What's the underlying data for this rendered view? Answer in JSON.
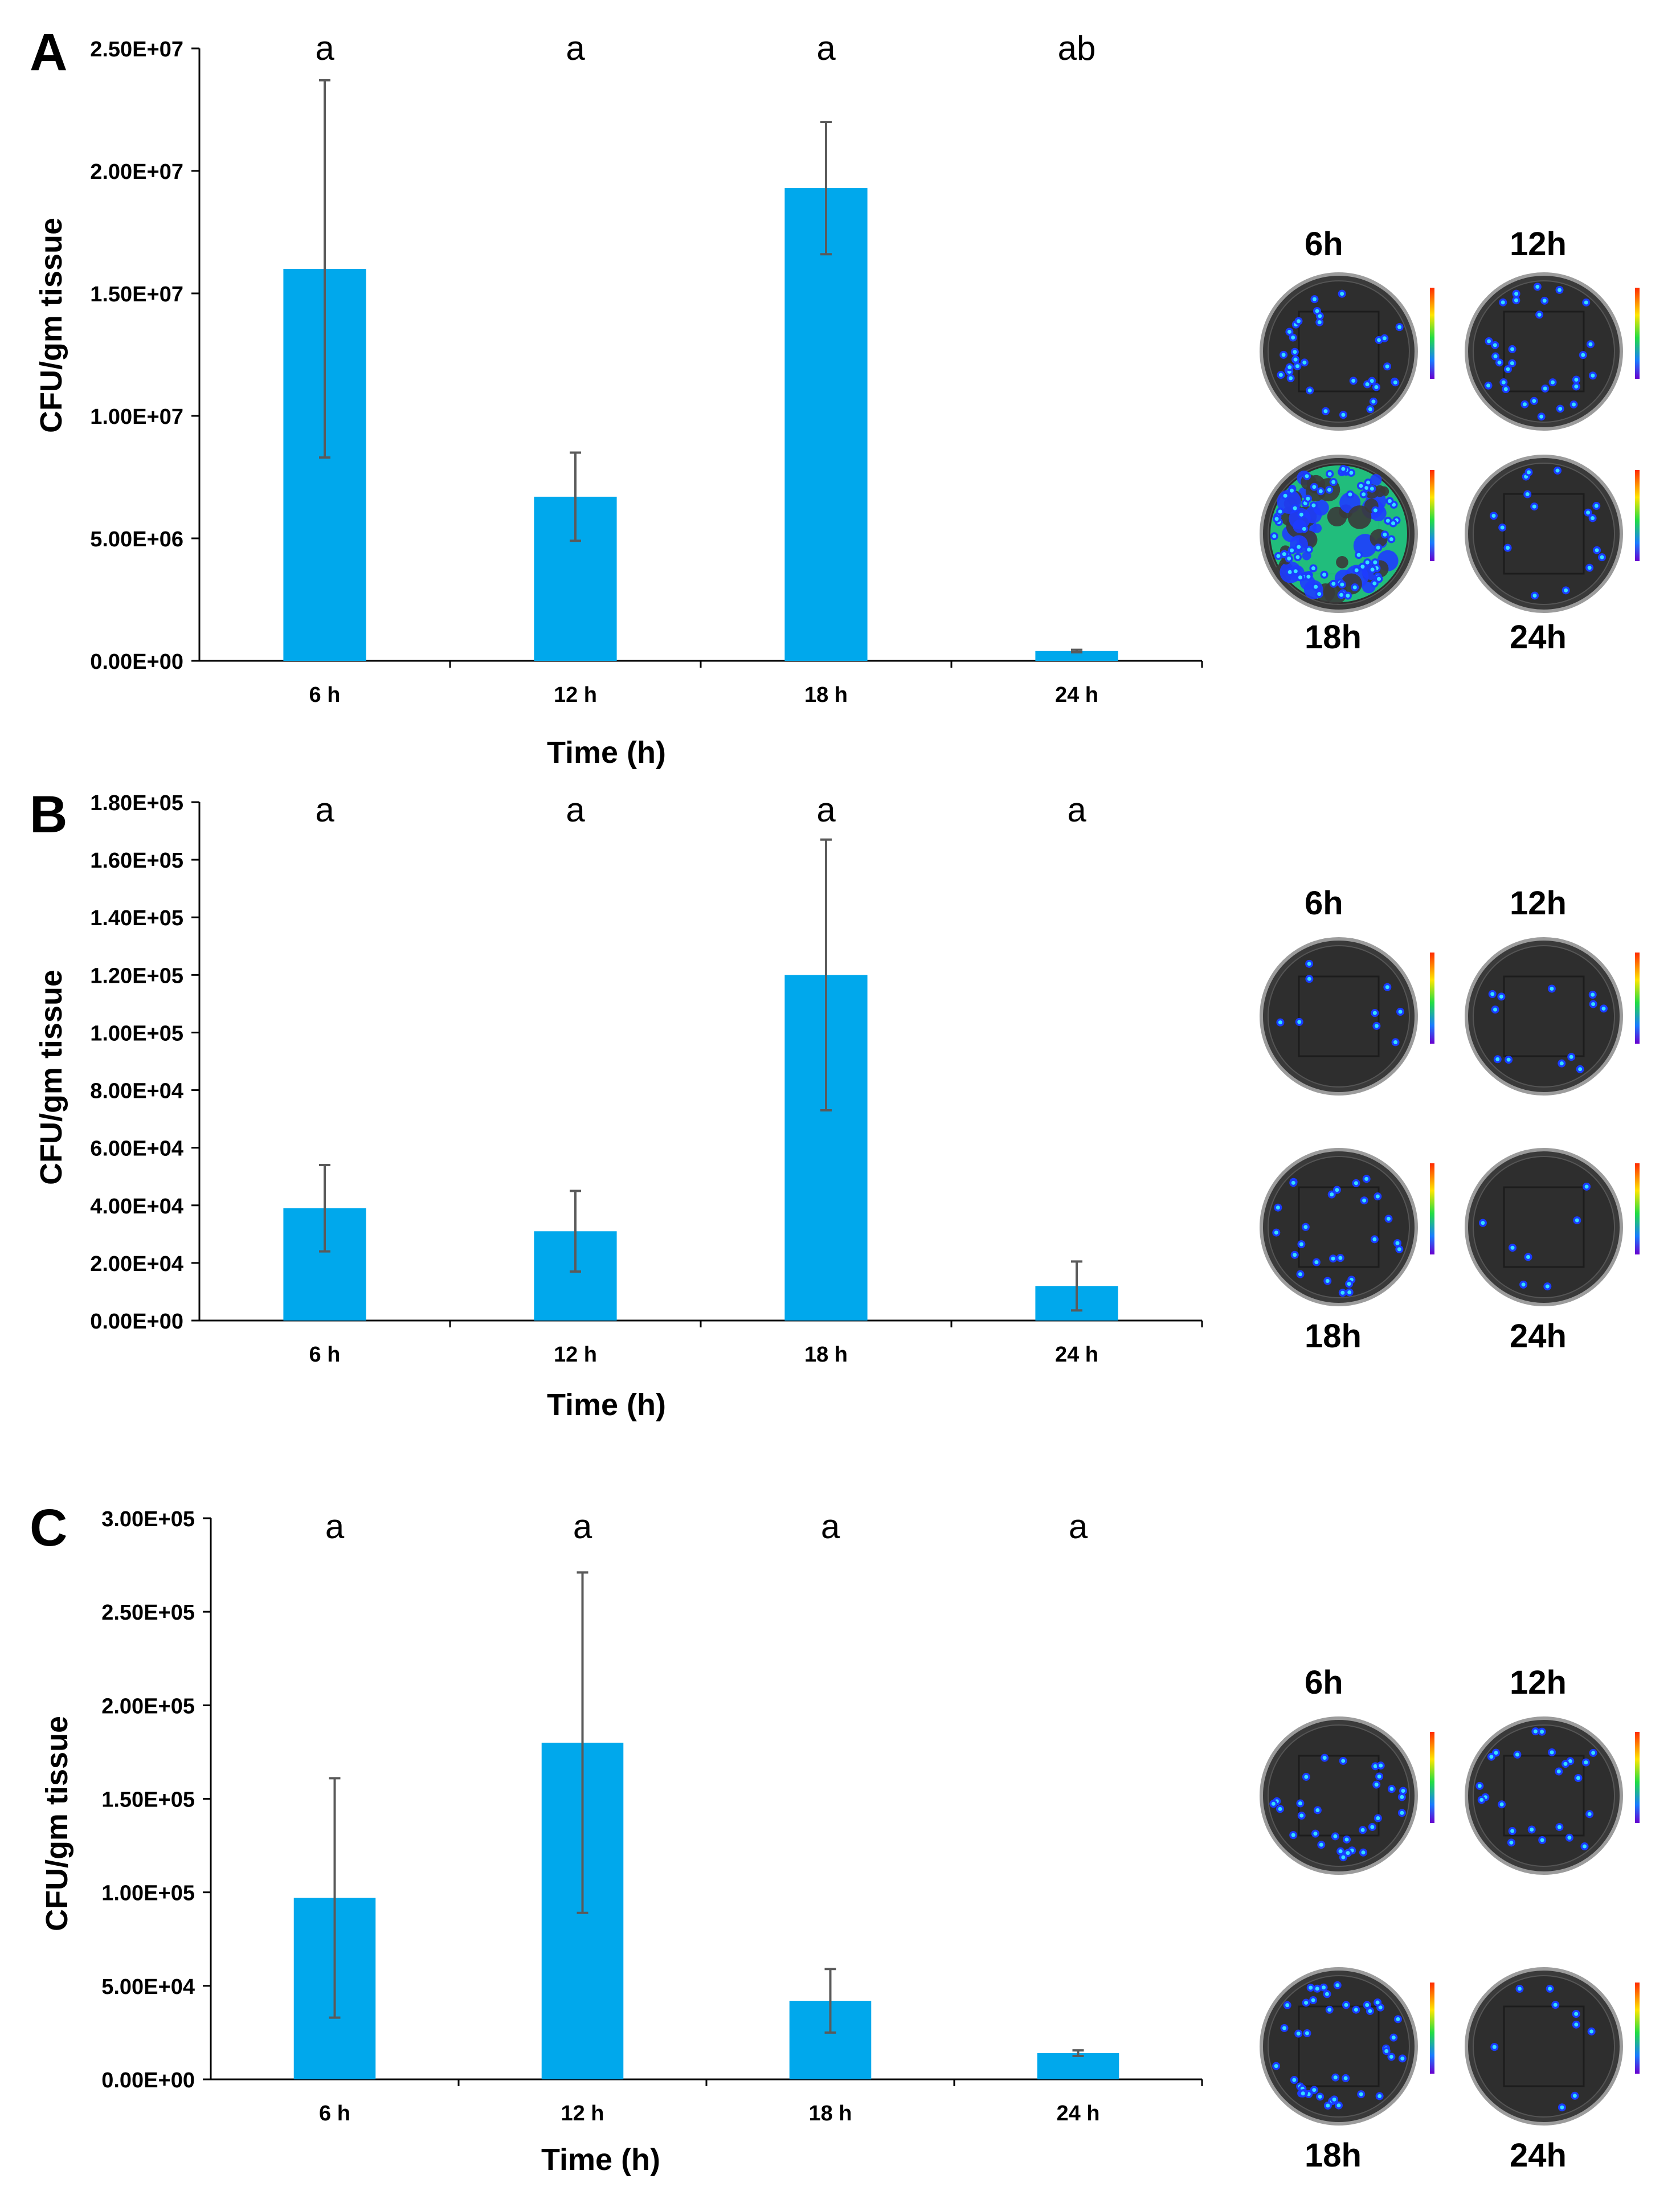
{
  "chart_data": [
    {
      "type": "bar",
      "panel_label": "A",
      "categories": [
        "6 h",
        "12 h",
        "18 h",
        "24 h"
      ],
      "values": [
        16000000,
        6700000,
        19300000,
        400000
      ],
      "errors": [
        7700000,
        1800000,
        2700000,
        50000
      ],
      "significance": [
        "a",
        "a",
        "a",
        "ab"
      ],
      "ylim": [
        0,
        25000000
      ],
      "ytick_values": [
        0,
        5000000,
        10000000,
        15000000,
        20000000,
        25000000
      ],
      "ytick_labels": [
        "0.00E+00",
        "5.00E+06",
        "1.00E+07",
        "1.50E+07",
        "2.00E+07",
        "2.50E+07"
      ],
      "xlabel": "Time (h)",
      "ylabel": "CFU/gm tissue",
      "bar_color": "#00a8ec",
      "grid": false,
      "plates": [
        {
          "label": "6h",
          "density": 0.35,
          "bloom": false
        },
        {
          "label": "12h",
          "density": 0.3,
          "bloom": false
        },
        {
          "label": "18h",
          "density": 0.9,
          "bloom": true
        },
        {
          "label": "24h",
          "density": 0.12,
          "bloom": false
        }
      ]
    },
    {
      "type": "bar",
      "panel_label": "B",
      "categories": [
        "6 h",
        "12 h",
        "18 h",
        "24 h"
      ],
      "values": [
        39000,
        31000,
        120000,
        12000
      ],
      "errors": [
        15000,
        14000,
        47000,
        8500
      ],
      "significance": [
        "a",
        "a",
        "a",
        "a"
      ],
      "ylim": [
        0,
        180000
      ],
      "ytick_values": [
        0,
        20000,
        40000,
        60000,
        80000,
        100000,
        120000,
        140000,
        160000,
        180000
      ],
      "ytick_labels": [
        "0.00E+00",
        "2.00E+04",
        "4.00E+04",
        "6.00E+04",
        "8.00E+04",
        "1.00E+05",
        "1.20E+05",
        "1.40E+05",
        "1.60E+05",
        "1.80E+05"
      ],
      "xlabel": "Time (h)",
      "ylabel": "CFU/gm tissue",
      "bar_color": "#00a8ec",
      "grid": false,
      "plates": [
        {
          "label": "6h",
          "density": 0.04,
          "bloom": false
        },
        {
          "label": "12h",
          "density": 0.07,
          "bloom": false
        },
        {
          "label": "18h",
          "density": 0.25,
          "bloom": false
        },
        {
          "label": "24h",
          "density": 0.01,
          "bloom": false
        }
      ]
    },
    {
      "type": "bar",
      "panel_label": "C",
      "categories": [
        "6 h",
        "12 h",
        "18 h",
        "24 h"
      ],
      "values": [
        97000,
        180000,
        42000,
        14000
      ],
      "errors": [
        64000,
        91000,
        17000,
        1500
      ],
      "significance": [
        "a",
        "a",
        "a",
        "a"
      ],
      "ylim": [
        0,
        300000
      ],
      "ytick_values": [
        0,
        50000,
        100000,
        150000,
        200000,
        250000,
        300000
      ],
      "ytick_labels": [
        "0.00E+00",
        "5.00E+04",
        "1.00E+05",
        "1.50E+05",
        "2.00E+05",
        "2.50E+05",
        "3.00E+05"
      ],
      "xlabel": "Time (h)",
      "ylabel": "CFU/gm tissue",
      "bar_color": "#00a8ec",
      "grid": false,
      "plates": [
        {
          "label": "6h",
          "density": 0.3,
          "bloom": false
        },
        {
          "label": "12h",
          "density": 0.22,
          "bloom": false
        },
        {
          "label": "18h",
          "density": 0.45,
          "bloom": false
        },
        {
          "label": "24h",
          "density": 0.04,
          "bloom": false
        }
      ]
    }
  ]
}
